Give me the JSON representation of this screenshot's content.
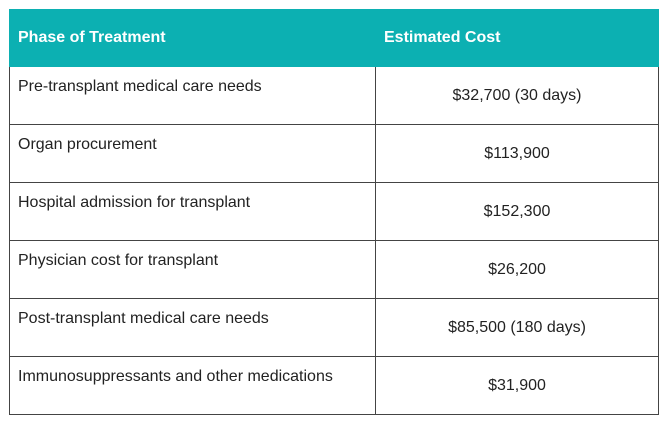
{
  "table": {
    "header": [
      "Phase of Treatment",
      "Estimated Cost"
    ],
    "rows": [
      [
        "Pre-transplant medical care needs",
        "$32,700 (30 days)"
      ],
      [
        "Organ procurement",
        "$113,900"
      ],
      [
        "Hospital admission for transplant",
        "$152,300"
      ],
      [
        "Physician cost for transplant",
        "$26,200"
      ],
      [
        "Post-transplant medical care needs",
        "$85,500 (180 days)"
      ],
      [
        "Immunosuppressants and other medications",
        "$31,900"
      ]
    ]
  }
}
